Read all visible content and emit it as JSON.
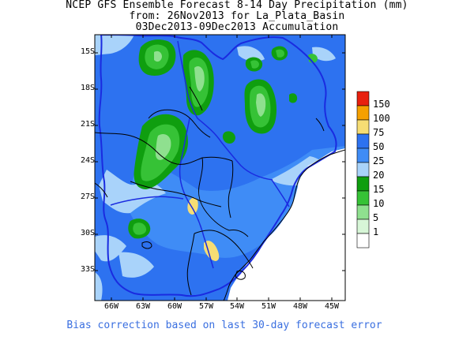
{
  "title": {
    "line1": "NCEP GFS Ensemble Forecast 8-14 Day Precipitation (mm)",
    "line2": "from: 26Nov2013   for La_Plata_Basin",
    "line3": "03Dec2013-09Dec2013 Accumulation"
  },
  "axes": {
    "lat_labels": [
      "15S",
      "18S",
      "21S",
      "24S",
      "27S",
      "30S",
      "33S"
    ],
    "lon_labels": [
      "66W",
      "63W",
      "60W",
      "57W",
      "54W",
      "51W",
      "48W",
      "45W"
    ]
  },
  "legend": {
    "levels": [
      "150",
      "100",
      "75",
      "50",
      "25",
      "20",
      "15",
      "10",
      "5",
      "1"
    ],
    "colors": [
      "#e8200e",
      "#f5a000",
      "#f6dd74",
      "#2d72f0",
      "#3f8cf6",
      "#a9d3fa",
      "#0f9e0f",
      "#36c236",
      "#8fe08f",
      "#d7f6d7",
      "#ffffff"
    ]
  },
  "footnote": "Bias correction based on last 30-day forecast error"
}
